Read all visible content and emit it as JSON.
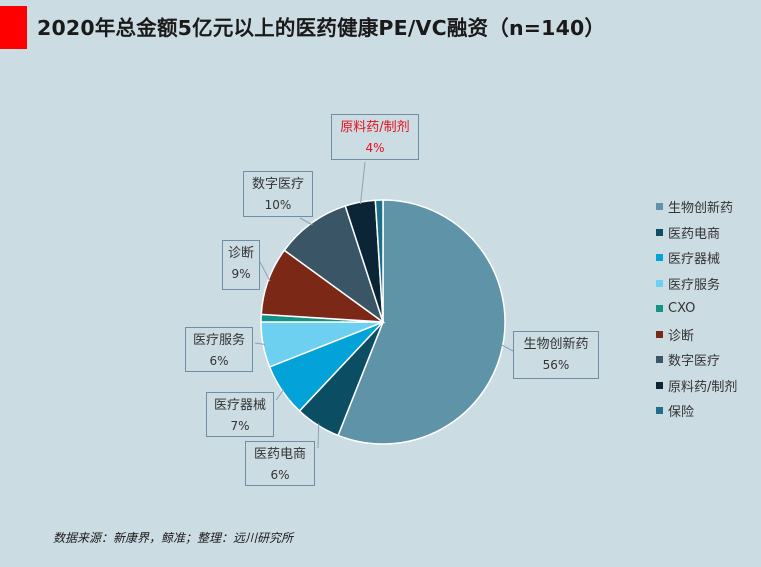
{
  "title": "2020年总金额5亿元以上的医药健康PE/VC融资（n=140）",
  "source": "数据来源：新康界，鲸准；整理：远川研究所",
  "chart_data": {
    "type": "pie",
    "title": "2020年总金额5亿元以上的医药健康PE/VC融资（n=140）",
    "legend_position": "right",
    "series": [
      {
        "name": "生物创新药",
        "value": 56,
        "label": "56%",
        "color": "#5f93a8"
      },
      {
        "name": "医药电商",
        "value": 6,
        "label": "6%",
        "color": "#0b4d63"
      },
      {
        "name": "医疗器械",
        "value": 7,
        "label": "7%",
        "color": "#03a3d9"
      },
      {
        "name": "医疗服务",
        "value": 6,
        "label": "6%",
        "color": "#6dd0f0"
      },
      {
        "name": "CXO",
        "value": 1,
        "label": "",
        "color": "#129486"
      },
      {
        "name": "诊断",
        "value": 9,
        "label": "9%",
        "color": "#7b2817"
      },
      {
        "name": "数字医疗",
        "value": 10,
        "label": "10%",
        "color": "#3a5565"
      },
      {
        "name": "原料药/制剂",
        "value": 4,
        "label": "4%",
        "color": "#0b2436",
        "highlight_color": "#e8101e"
      },
      {
        "name": "保险",
        "value": 1,
        "label": "",
        "color": "#1d6f8a"
      }
    ]
  }
}
